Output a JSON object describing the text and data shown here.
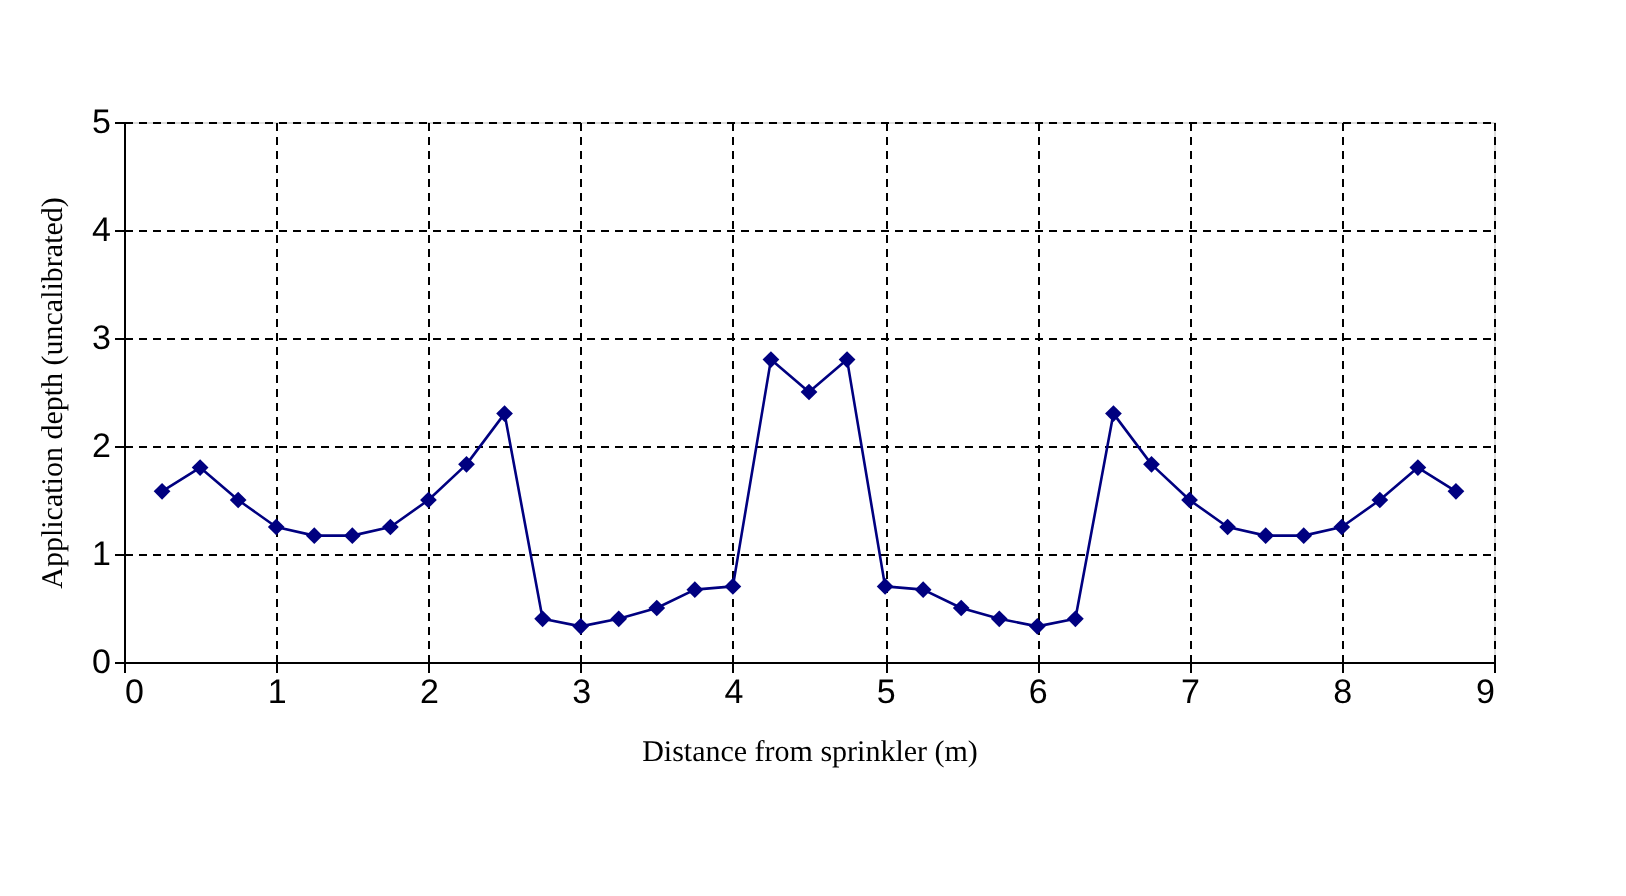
{
  "chart_data": {
    "type": "line",
    "xlabel": "Distance from sprinkler (m)",
    "ylabel": "Application depth (uncalibrated)",
    "x": [
      0.25,
      0.5,
      0.75,
      1.0,
      1.25,
      1.5,
      1.75,
      2.0,
      2.25,
      2.5,
      2.75,
      3.0,
      3.25,
      3.5,
      3.75,
      4.0,
      4.25,
      4.5,
      4.75,
      5.0,
      5.25,
      5.5,
      5.75,
      6.0,
      6.25,
      6.5,
      6.75,
      7.0,
      7.25,
      7.5,
      7.75,
      8.0,
      8.25,
      8.5,
      8.75
    ],
    "series": [
      {
        "color": "#000080",
        "values": [
          1.58,
          1.8,
          1.5,
          1.25,
          1.17,
          1.17,
          1.25,
          1.5,
          1.83,
          2.3,
          0.4,
          0.33,
          0.4,
          0.5,
          0.67,
          0.7,
          2.8,
          2.5,
          2.8,
          0.7,
          0.67,
          0.5,
          0.4,
          0.33,
          0.4,
          2.3,
          1.83,
          1.5,
          1.25,
          1.17,
          1.17,
          1.25,
          1.5,
          1.8,
          1.58
        ]
      }
    ],
    "xlim": [
      0,
      9
    ],
    "xticks": [
      0,
      1,
      2,
      3,
      4,
      5,
      6,
      7,
      8,
      9
    ],
    "ylim": [
      0,
      5
    ],
    "yticks": [
      0,
      1,
      2,
      3,
      4,
      5
    ],
    "grid": true,
    "marker": "diamond",
    "line_style": "solid"
  }
}
